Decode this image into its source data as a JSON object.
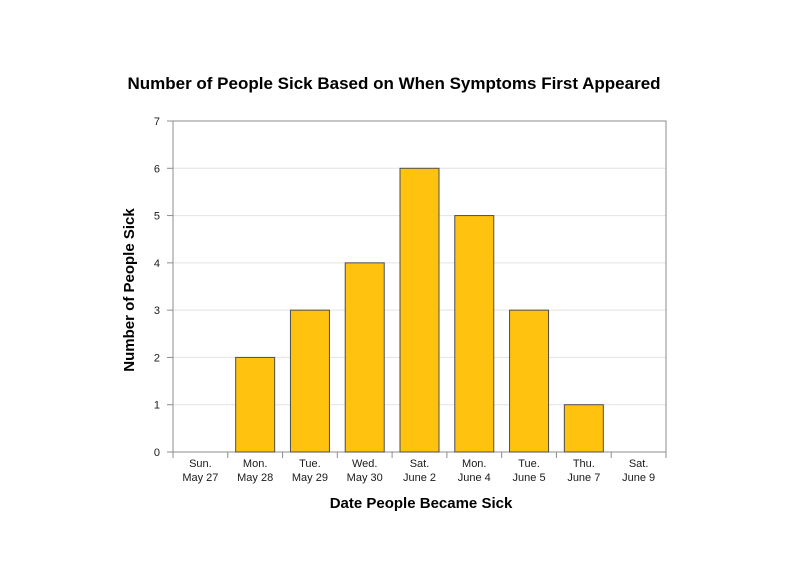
{
  "chart_data": {
    "type": "bar",
    "title": "Number of People Sick Based on When Symptoms First Appeared",
    "xlabel": "Date People Became Sick",
    "ylabel": "Number of People Sick",
    "categories": [
      [
        "Sun.",
        "May 27"
      ],
      [
        "Mon.",
        "May 28"
      ],
      [
        "Tue.",
        "May 29"
      ],
      [
        "Wed.",
        "May 30"
      ],
      [
        "Sat.",
        "June 2"
      ],
      [
        "Mon.",
        "June 4"
      ],
      [
        "Tue.",
        "June 5"
      ],
      [
        "Thu.",
        "June 7"
      ],
      [
        "Sat.",
        "June 9"
      ]
    ],
    "values": [
      0,
      2,
      3,
      4,
      6,
      5,
      3,
      1,
      0
    ],
    "ylim": [
      0,
      7
    ],
    "yticks": [
      0,
      1,
      2,
      3,
      4,
      5,
      6,
      7
    ],
    "grid": true,
    "bar_color": "#ffc20e",
    "bar_edge_color": "#4d4d4d"
  }
}
